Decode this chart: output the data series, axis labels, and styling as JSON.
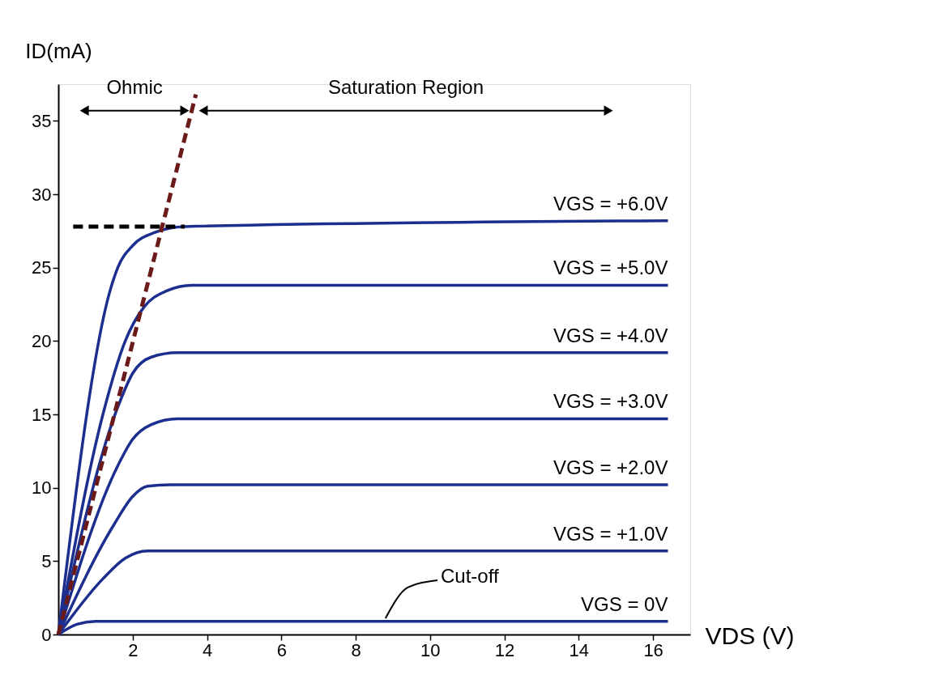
{
  "chart_data": {
    "type": "line",
    "xlabel": "VDS (V)",
    "ylabel": "ID(mA)",
    "xlim": [
      0,
      17
    ],
    "ylim": [
      0,
      37.5
    ],
    "xticks": [
      2,
      4,
      6,
      8,
      10,
      12,
      14,
      16
    ],
    "yticks": [
      0,
      5,
      10,
      15,
      20,
      25,
      30,
      35
    ],
    "grid": false,
    "marker": "none",
    "annotations": [
      "Ohmic",
      "Saturation Region",
      "Cut-off"
    ],
    "series": [
      {
        "name": "VGS = +6.0V",
        "color": "#1c2f8f",
        "line_style": "solid",
        "x": [
          0,
          1.4,
          1.6,
          2.0,
          2.6,
          3.4,
          16.4
        ],
        "values": [
          0,
          23.5,
          25,
          26.5,
          27.4,
          27.8,
          28.2
        ]
      },
      {
        "name": "VGS = +5.0V",
        "color": "#1c2f8f",
        "line_style": "solid",
        "x": [
          0,
          1.2,
          1.8,
          2.3,
          2.9,
          3.6,
          16.4
        ],
        "values": [
          0,
          15,
          20,
          22.3,
          23.4,
          23.8,
          23.8
        ]
      },
      {
        "name": "VGS = +4.0V",
        "color": "#1c2f8f",
        "line_style": "solid",
        "x": [
          0,
          1.6,
          2.0,
          2.5,
          3.2,
          16.4
        ],
        "values": [
          0,
          15.5,
          17.8,
          18.9,
          19.2,
          19.2
        ]
      },
      {
        "name": "VGS = +3.0V",
        "color": "#1c2f8f",
        "line_style": "solid",
        "x": [
          0,
          1.6,
          2.0,
          2.5,
          3.2,
          16.4
        ],
        "values": [
          0,
          11.5,
          13.3,
          14.3,
          14.7,
          14.7
        ]
      },
      {
        "name": "VGS = +2.0V",
        "color": "#1c2f8f",
        "line_style": "solid",
        "x": [
          0,
          1.5,
          2.0,
          2.4,
          3.0,
          16.4
        ],
        "values": [
          0,
          7.5,
          9.4,
          10.1,
          10.2,
          10.2
        ]
      },
      {
        "name": "VGS = +1.0V",
        "color": "#1c2f8f",
        "line_style": "solid",
        "x": [
          0,
          1.2,
          1.8,
          2.4,
          16.4
        ],
        "values": [
          0,
          3.8,
          5.2,
          5.7,
          5.7
        ]
      },
      {
        "name": "VGS = 0V",
        "color": "#1c2f8f",
        "line_style": "solid",
        "x": [
          0,
          0.5,
          1.0,
          16.4
        ],
        "values": [
          0,
          0.7,
          0.9,
          0.9
        ]
      },
      {
        "color": "#6b1a1a",
        "line_style": "dashed",
        "x": [
          0,
          3.7
        ],
        "values": [
          0,
          36.8
        ]
      },
      {
        "color": "#000000",
        "line_style": "dashed",
        "x": [
          0.4,
          3.4
        ],
        "values": [
          27.8,
          27.8
        ]
      },
      {
        "color": "#000000",
        "line_style": "solid",
        "marker": "triangle",
        "x": [
          0.7,
          3.4
        ],
        "values": [
          35.7,
          35.7
        ]
      },
      {
        "color": "#000000",
        "line_style": "solid",
        "marker": "triangle",
        "x": [
          3.9,
          14.8
        ],
        "values": [
          35.7,
          35.7
        ]
      },
      {
        "color": "#000000",
        "line_style": "solid",
        "x": [
          10.2,
          9.4,
          8.8
        ],
        "values": [
          3.7,
          3.2,
          1.1
        ]
      }
    ]
  }
}
